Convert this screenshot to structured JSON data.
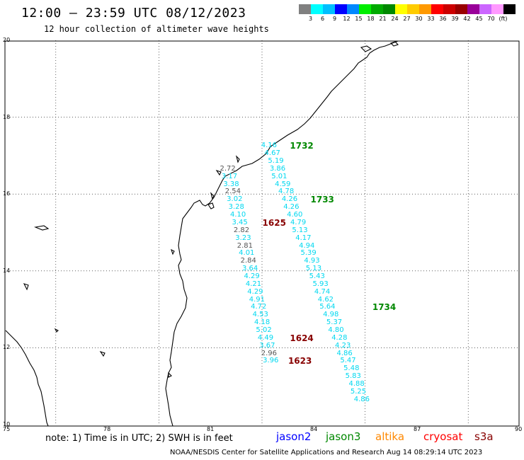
{
  "header": {
    "title": "12:00 – 23:59 UTC 08/12/2023",
    "subtitle": "12 hour collection of altimeter wave heights"
  },
  "legend": {
    "colors": [
      "#808080",
      "#00ffff",
      "#00bfff",
      "#0000ff",
      "#0088ff",
      "#00ee00",
      "#00aa00",
      "#008800",
      "#ffff00",
      "#ffcc00",
      "#ff9900",
      "#ff0000",
      "#cc0000",
      "#990000",
      "#990099",
      "#cc66ff",
      "#ff99ff",
      "#000000"
    ],
    "labels": [
      "3",
      "6",
      "9",
      "12",
      "15",
      "18",
      "21",
      "24",
      "27",
      "30",
      "33",
      "36",
      "39",
      "42",
      "45",
      "70",
      "(ft)"
    ]
  },
  "map": {
    "lat_labels": [
      "20",
      "18",
      "16",
      "14",
      "12",
      "10"
    ],
    "lon_labels": [
      "75",
      "78",
      "81",
      "84",
      "87",
      "90"
    ],
    "lon_range": [
      75,
      90
    ],
    "lat_range": [
      10,
      20
    ],
    "colors": {
      "jason3": "#008800",
      "jason3_values": "#00d8f0",
      "cryosat": "#880000",
      "cryosat_gray": "#555555"
    },
    "measurements": [
      {
        "lon": 82.7,
        "lat": 17.25,
        "v": "4.16",
        "c": "cyan"
      },
      {
        "lon": 82.8,
        "lat": 17.05,
        "v": "4.67",
        "c": "cyan"
      },
      {
        "lon": 82.9,
        "lat": 16.85,
        "v": "5.19",
        "c": "cyan"
      },
      {
        "lon": 82.95,
        "lat": 16.65,
        "v": "3.86",
        "c": "cyan"
      },
      {
        "lon": 83.0,
        "lat": 16.45,
        "v": "5.01",
        "c": "cyan"
      },
      {
        "lon": 83.1,
        "lat": 16.25,
        "v": "4.59",
        "c": "cyan"
      },
      {
        "lon": 83.2,
        "lat": 16.05,
        "v": "4.78",
        "c": "cyan"
      },
      {
        "lon": 83.3,
        "lat": 15.85,
        "v": "4.26",
        "c": "cyan"
      },
      {
        "lon": 83.35,
        "lat": 15.65,
        "v": "4.26",
        "c": "cyan"
      },
      {
        "lon": 83.45,
        "lat": 15.45,
        "v": "4.60",
        "c": "cyan"
      },
      {
        "lon": 83.55,
        "lat": 15.25,
        "v": "4.79",
        "c": "cyan"
      },
      {
        "lon": 83.6,
        "lat": 15.05,
        "v": "5.13",
        "c": "cyan"
      },
      {
        "lon": 83.7,
        "lat": 14.85,
        "v": "4.17",
        "c": "cyan"
      },
      {
        "lon": 83.8,
        "lat": 14.65,
        "v": "4.94",
        "c": "cyan"
      },
      {
        "lon": 83.85,
        "lat": 14.45,
        "v": "5.39",
        "c": "cyan"
      },
      {
        "lon": 83.95,
        "lat": 14.25,
        "v": "4.93",
        "c": "cyan"
      },
      {
        "lon": 84.0,
        "lat": 14.05,
        "v": "5.13",
        "c": "cyan"
      },
      {
        "lon": 84.1,
        "lat": 13.85,
        "v": "5.43",
        "c": "cyan"
      },
      {
        "lon": 84.2,
        "lat": 13.65,
        "v": "5.93",
        "c": "cyan"
      },
      {
        "lon": 84.25,
        "lat": 13.45,
        "v": "4.74",
        "c": "cyan"
      },
      {
        "lon": 84.35,
        "lat": 13.25,
        "v": "4.62",
        "c": "cyan"
      },
      {
        "lon": 84.4,
        "lat": 13.05,
        "v": "5.64",
        "c": "cyan"
      },
      {
        "lon": 84.5,
        "lat": 12.85,
        "v": "4.98",
        "c": "cyan"
      },
      {
        "lon": 84.6,
        "lat": 12.65,
        "v": "5.37",
        "c": "cyan"
      },
      {
        "lon": 84.65,
        "lat": 12.45,
        "v": "4.80",
        "c": "cyan"
      },
      {
        "lon": 84.75,
        "lat": 12.25,
        "v": "4.28",
        "c": "cyan"
      },
      {
        "lon": 84.85,
        "lat": 12.05,
        "v": "4.23",
        "c": "cyan"
      },
      {
        "lon": 84.9,
        "lat": 11.85,
        "v": "4.86",
        "c": "cyan"
      },
      {
        "lon": 85.0,
        "lat": 11.65,
        "v": "5.47",
        "c": "cyan"
      },
      {
        "lon": 85.1,
        "lat": 11.45,
        "v": "5.48",
        "c": "cyan"
      },
      {
        "lon": 85.15,
        "lat": 11.25,
        "v": "5.83",
        "c": "cyan"
      },
      {
        "lon": 85.25,
        "lat": 11.05,
        "v": "4.88",
        "c": "cyan"
      },
      {
        "lon": 85.3,
        "lat": 10.85,
        "v": "5.25",
        "c": "cyan"
      },
      {
        "lon": 85.4,
        "lat": 10.65,
        "v": "4.86",
        "c": "cyan"
      },
      {
        "lon": 81.5,
        "lat": 16.65,
        "v": "2.72",
        "c": "gray"
      },
      {
        "lon": 81.55,
        "lat": 16.45,
        "v": "3.17",
        "c": "cyan"
      },
      {
        "lon": 81.6,
        "lat": 16.25,
        "v": "3.38",
        "c": "cyan"
      },
      {
        "lon": 81.65,
        "lat": 16.05,
        "v": "2.54",
        "c": "gray"
      },
      {
        "lon": 81.7,
        "lat": 15.85,
        "v": "3.02",
        "c": "cyan"
      },
      {
        "lon": 81.75,
        "lat": 15.65,
        "v": "3.28",
        "c": "cyan"
      },
      {
        "lon": 81.8,
        "lat": 15.45,
        "v": "4.10",
        "c": "cyan"
      },
      {
        "lon": 81.85,
        "lat": 15.25,
        "v": "3.45",
        "c": "cyan"
      },
      {
        "lon": 81.9,
        "lat": 15.05,
        "v": "2.82",
        "c": "gray"
      },
      {
        "lon": 81.95,
        "lat": 14.85,
        "v": "3.23",
        "c": "cyan"
      },
      {
        "lon": 82.0,
        "lat": 14.65,
        "v": "2.81",
        "c": "gray"
      },
      {
        "lon": 82.05,
        "lat": 14.45,
        "v": "4.01",
        "c": "cyan"
      },
      {
        "lon": 82.1,
        "lat": 14.25,
        "v": "2.84",
        "c": "gray"
      },
      {
        "lon": 82.15,
        "lat": 14.05,
        "v": "3.64",
        "c": "cyan"
      },
      {
        "lon": 82.2,
        "lat": 13.85,
        "v": "4.29",
        "c": "cyan"
      },
      {
        "lon": 82.25,
        "lat": 13.65,
        "v": "4.21",
        "c": "cyan"
      },
      {
        "lon": 82.3,
        "lat": 13.45,
        "v": "4.29",
        "c": "cyan"
      },
      {
        "lon": 82.35,
        "lat": 13.25,
        "v": "4.91",
        "c": "cyan"
      },
      {
        "lon": 82.4,
        "lat": 13.05,
        "v": "4.72",
        "c": "cyan"
      },
      {
        "lon": 82.45,
        "lat": 12.85,
        "v": "4.53",
        "c": "cyan"
      },
      {
        "lon": 82.5,
        "lat": 12.65,
        "v": "4.18",
        "c": "cyan"
      },
      {
        "lon": 82.55,
        "lat": 12.45,
        "v": "5.02",
        "c": "cyan"
      },
      {
        "lon": 82.6,
        "lat": 12.25,
        "v": "4.49",
        "c": "cyan"
      },
      {
        "lon": 82.65,
        "lat": 12.05,
        "v": "3.67",
        "c": "cyan"
      },
      {
        "lon": 82.7,
        "lat": 11.85,
        "v": "2.96",
        "c": "gray"
      },
      {
        "lon": 82.75,
        "lat": 11.65,
        "v": "3.96",
        "c": "cyan"
      }
    ],
    "times": [
      {
        "lon": 83.6,
        "lat": 17.25,
        "v": "1732",
        "c": "jason3"
      },
      {
        "lon": 84.2,
        "lat": 15.85,
        "v": "1733",
        "c": "jason3"
      },
      {
        "lon": 86.0,
        "lat": 13.05,
        "v": "1734",
        "c": "jason3"
      },
      {
        "lon": 82.8,
        "lat": 15.25,
        "v": "1625",
        "c": "cryosat"
      },
      {
        "lon": 83.6,
        "lat": 12.25,
        "v": "1624",
        "c": "cryosat"
      },
      {
        "lon": 83.55,
        "lat": 11.65,
        "v": "1623",
        "c": "cryosat"
      }
    ]
  },
  "notes": {
    "note": "note: 1) Time is in UTC; 2) SWH is in feet",
    "satellites": [
      {
        "name": "jason2",
        "color": "#0000ff"
      },
      {
        "name": "jason3",
        "color": "#008800"
      },
      {
        "name": "altika",
        "color": "#ff8800"
      },
      {
        "name": "cryosat",
        "color": "#ff0000"
      },
      {
        "name": "s3a",
        "color": "#880000"
      }
    ],
    "footer": "NOAA/NESDIS Center for Satellite Applications and Research    Aug 14 08:29:14 UTC 2023"
  }
}
